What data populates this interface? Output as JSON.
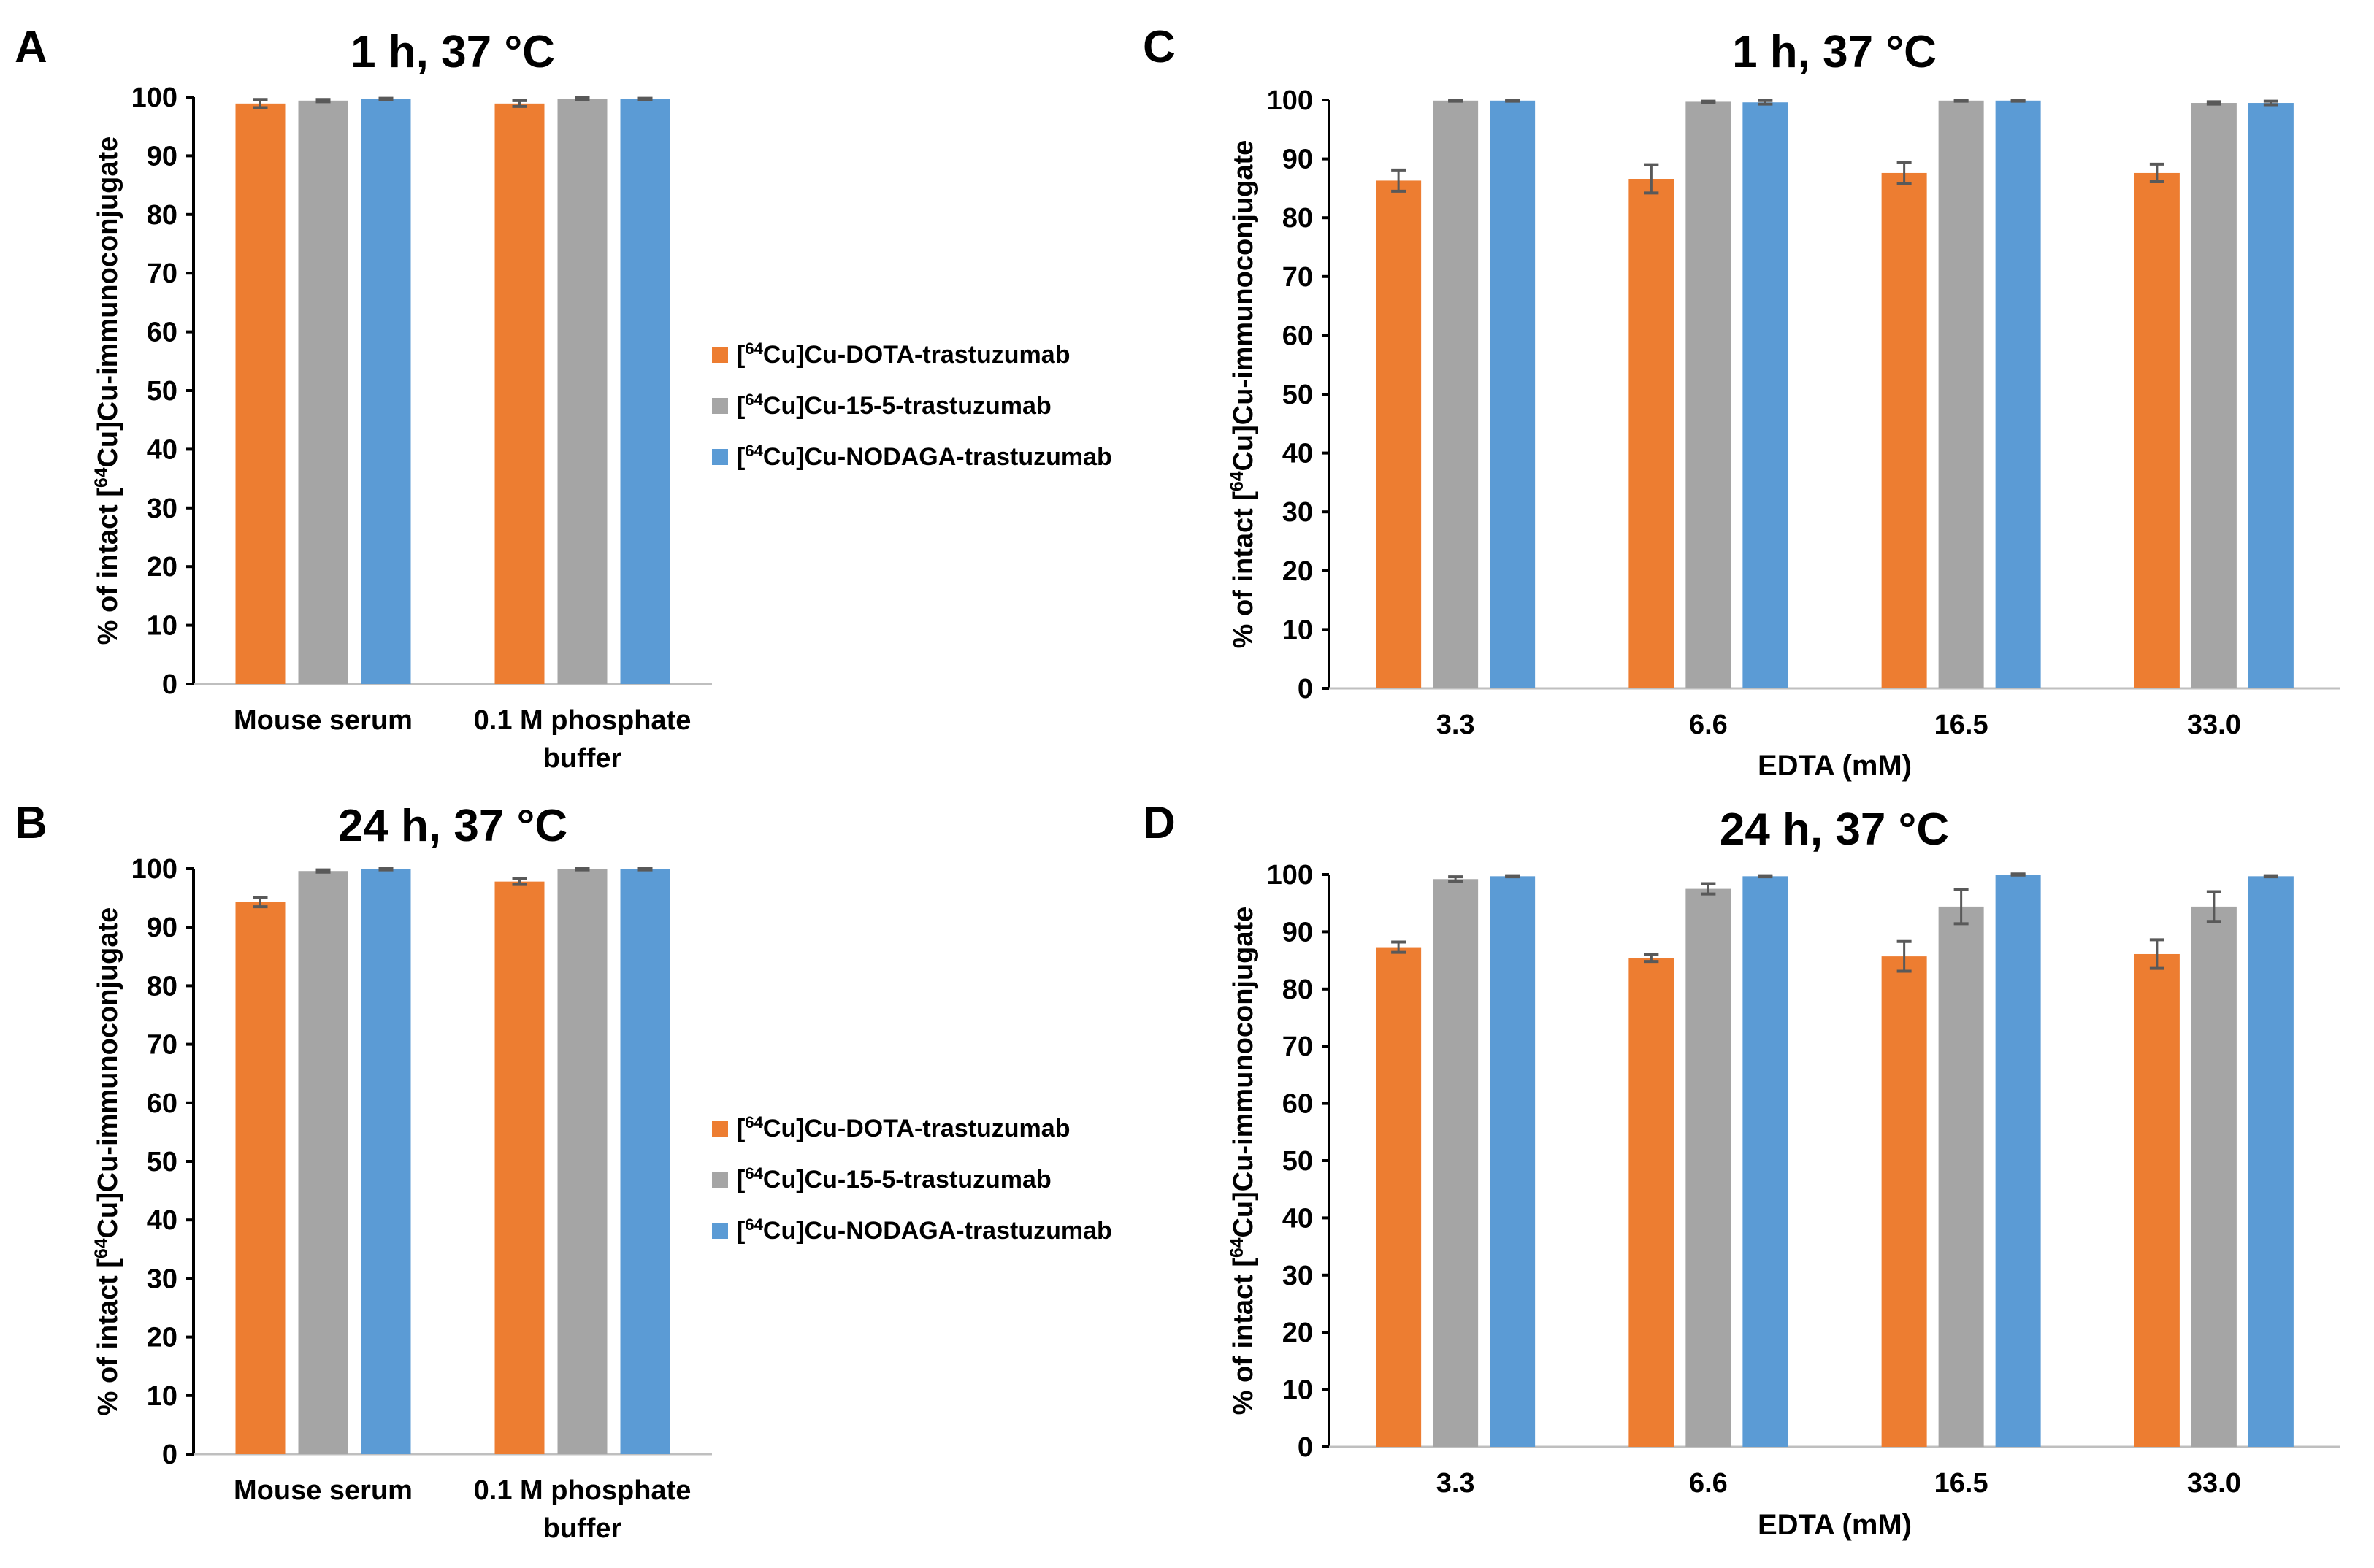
{
  "colors": {
    "DOTA": "#ED7D31",
    "15-5": "#A5A5A5",
    "NODAGA": "#5B9BD5",
    "error": "#595959"
  },
  "chart_data": [
    {
      "panel": "A",
      "type": "bar",
      "title": "1 h, 37 °C",
      "categories": [
        "Mouse serum",
        "0.1 M phosphate buffer"
      ],
      "xlabel": "",
      "ylabel": "% of intact [64Cu]Cu-immunoconjugate",
      "ylim": [
        0,
        100
      ],
      "yticks": [
        0,
        10,
        20,
        30,
        40,
        50,
        60,
        70,
        80,
        90,
        100
      ],
      "legend": "right",
      "series": [
        {
          "name": "[64Cu]Cu-DOTA-trastuzumab",
          "key": "DOTA",
          "values": [
            98.9,
            98.9
          ],
          "errors": [
            0.7,
            0.5
          ]
        },
        {
          "name": "[64Cu]Cu-15-5-trastuzumab",
          "key": "15-5",
          "values": [
            99.4,
            99.7
          ],
          "errors": [
            0.2,
            0.2
          ]
        },
        {
          "name": "[64Cu]Cu-NODAGA-trastuzumab",
          "key": "NODAGA",
          "values": [
            99.7,
            99.7
          ],
          "errors": [
            0.1,
            0.1
          ]
        }
      ]
    },
    {
      "panel": "B",
      "type": "bar",
      "title": "24 h, 37 °C",
      "categories": [
        "Mouse serum",
        "0.1 M phosphate buffer"
      ],
      "xlabel": "",
      "ylabel": "% of intact [64Cu]Cu-immunoconjugate",
      "ylim": [
        0,
        100
      ],
      "yticks": [
        0,
        10,
        20,
        30,
        40,
        50,
        60,
        70,
        80,
        90,
        100
      ],
      "legend": "right",
      "series": [
        {
          "name": "[64Cu]Cu-DOTA-trastuzumab",
          "key": "DOTA",
          "values": [
            94.3,
            97.8
          ],
          "errors": [
            0.8,
            0.5
          ]
        },
        {
          "name": "[64Cu]Cu-15-5-trastuzumab",
          "key": "15-5",
          "values": [
            99.6,
            99.9
          ],
          "errors": [
            0.2,
            0.1
          ]
        },
        {
          "name": "[64Cu]Cu-NODAGA-trastuzumab",
          "key": "NODAGA",
          "values": [
            99.9,
            99.9
          ],
          "errors": [
            0.1,
            0.1
          ]
        }
      ]
    },
    {
      "panel": "C",
      "type": "bar",
      "title": "1 h, 37 °C",
      "categories": [
        "3.3",
        "6.6",
        "16.5",
        "33.0"
      ],
      "xlabel": "EDTA (mM)",
      "ylabel": "% of intact [64Cu]Cu-immunoconjugate",
      "ylim": [
        0,
        100
      ],
      "yticks": [
        0,
        10,
        20,
        30,
        40,
        50,
        60,
        70,
        80,
        90,
        100
      ],
      "series": [
        {
          "name": "[64Cu]Cu-DOTA-trastuzumab",
          "key": "DOTA",
          "values": [
            86.3,
            86.6,
            87.6,
            87.6
          ],
          "errors": [
            1.8,
            2.4,
            1.8,
            1.5
          ]
        },
        {
          "name": "[64Cu]Cu-15-5-trastuzumab",
          "key": "15-5",
          "values": [
            99.9,
            99.7,
            99.9,
            99.5
          ],
          "errors": [
            0.1,
            0.1,
            0.1,
            0.2
          ]
        },
        {
          "name": "[64Cu]Cu-NODAGA-trastuzumab",
          "key": "NODAGA",
          "values": [
            99.9,
            99.6,
            99.9,
            99.5
          ],
          "errors": [
            0.1,
            0.3,
            0.1,
            0.3
          ]
        }
      ]
    },
    {
      "panel": "D",
      "type": "bar",
      "title": "24 h, 37 °C",
      "categories": [
        "3.3",
        "6.6",
        "16.5",
        "33.0"
      ],
      "xlabel": "EDTA (mM)",
      "ylabel": "% of intact [64Cu]Cu-immunoconjugate",
      "ylim": [
        0,
        100
      ],
      "yticks": [
        0,
        10,
        20,
        30,
        40,
        50,
        60,
        70,
        80,
        90,
        100
      ],
      "series": [
        {
          "name": "[64Cu]Cu-DOTA-trastuzumab",
          "key": "DOTA",
          "values": [
            87.3,
            85.4,
            85.7,
            86.1
          ],
          "errors": [
            0.9,
            0.6,
            2.6,
            2.5
          ]
        },
        {
          "name": "[64Cu]Cu-15-5-trastuzumab",
          "key": "15-5",
          "values": [
            99.2,
            97.5,
            94.4,
            94.4
          ],
          "errors": [
            0.4,
            0.9,
            3.0,
            2.6
          ]
        },
        {
          "name": "[64Cu]Cu-NODAGA-trastuzumab",
          "key": "NODAGA",
          "values": [
            99.7,
            99.7,
            100.0,
            99.7
          ],
          "errors": [
            0.1,
            0.1,
            0.1,
            0.1
          ]
        }
      ]
    }
  ]
}
